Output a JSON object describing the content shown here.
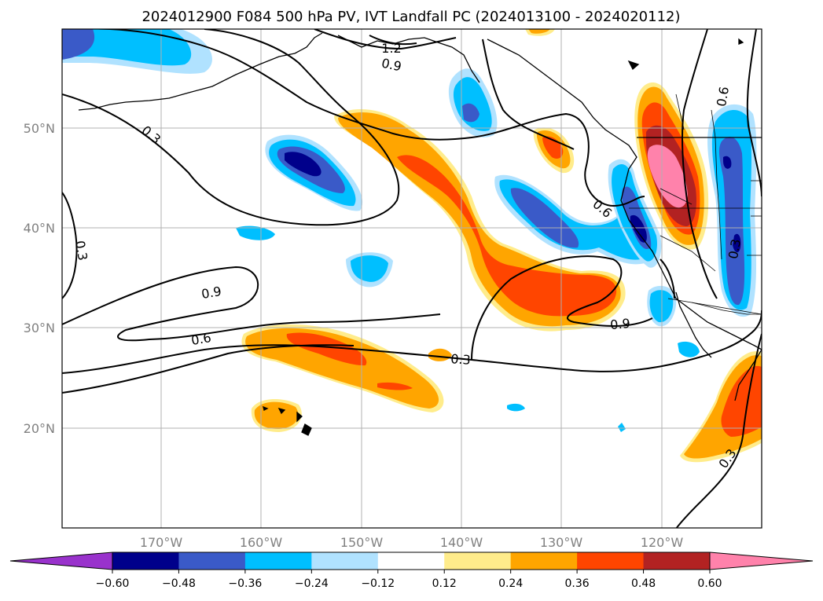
{
  "title": "2024012900 F084 500 hPa PV, IVT Landfall PC (2024013100 - 2024020112)",
  "lat_labels": [
    "50°N",
    "40°N",
    "30°N",
    "20°N"
  ],
  "lon_labels": [
    "170°W",
    "160°W",
    "150°W",
    "140°W",
    "130°W",
    "120°W"
  ],
  "colorbar": {
    "tick_labels": [
      "−0.60",
      "−0.48",
      "−0.36",
      "−0.24",
      "−0.12",
      "0.12",
      "0.24",
      "0.36",
      "0.48",
      "0.60"
    ],
    "colors": [
      "#9932cc",
      "#00008b",
      "#3a5ac8",
      "#00bfff",
      "#b0e2ff",
      "#ffffff",
      "#ffec8b",
      "#ffa500",
      "#ff4500",
      "#b22222",
      "#ff82ab"
    ]
  },
  "contour_labels": [
    "1.2",
    "0.9",
    "0.3",
    "0.6",
    "0.3",
    "0.9",
    "0.6",
    "0.3",
    "0.9",
    "0.3",
    "0.6",
    "0.3"
  ],
  "colors": {
    "dark_blue": "#00008b",
    "royal_blue": "#3a5ac8",
    "deep_sky": "#00bfff",
    "light_blue": "#b0e2ff",
    "yellow": "#ffec8b",
    "orange": "#ffa500",
    "red_orange": "#ff4500",
    "firebrick": "#b22222",
    "pink": "#ff82ab"
  }
}
